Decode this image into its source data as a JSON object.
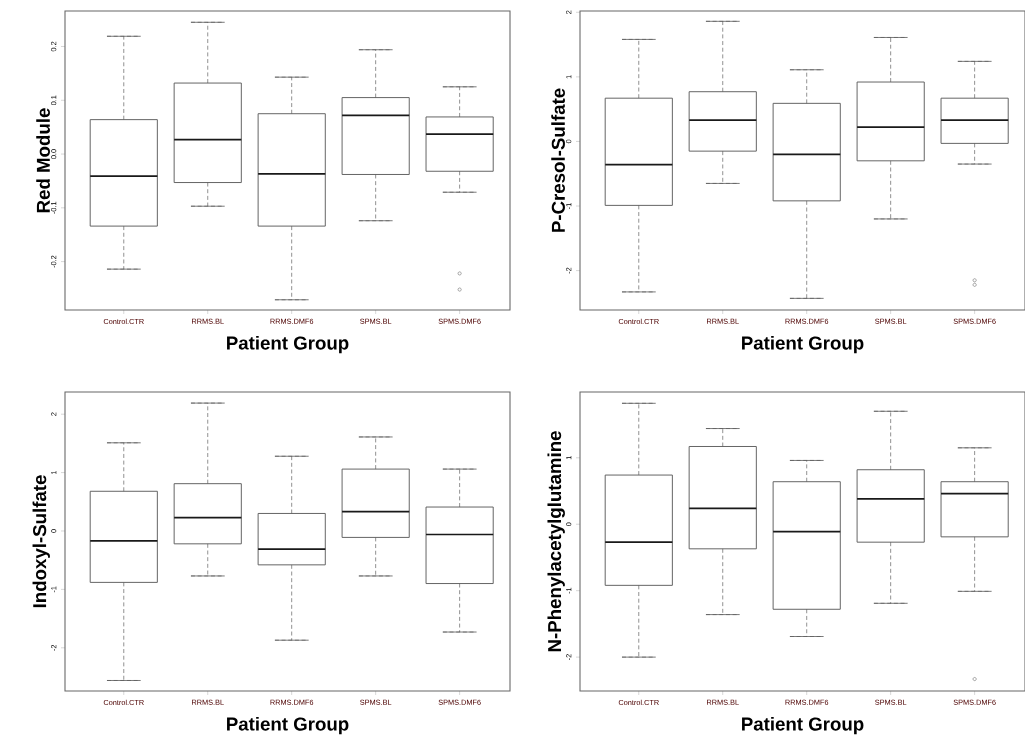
{
  "chart_data": [
    {
      "type": "box",
      "categories": [
        "Control.CTR",
        "RRMS.BL",
        "RRMS.DMF6",
        "SPMS.BL",
        "SPMS.DMF6"
      ],
      "xlabel": "Patient Group",
      "ylabel": "Red Module",
      "ylim": [
        -0.29,
        0.266
      ],
      "yticks": [
        -0.2,
        -0.1,
        {
          "value": 0,
          "label": "0.0"
        },
        0.1,
        0.2
      ],
      "boxes": [
        {
          "low": -0.214,
          "q1": -0.134,
          "median": -0.041,
          "q3": 0.064,
          "high": 0.219
        },
        {
          "low": -0.097,
          "q1": -0.053,
          "median": 0.027,
          "q3": 0.132,
          "high": 0.245
        },
        {
          "low": -0.271,
          "q1": -0.134,
          "median": -0.037,
          "q3": 0.075,
          "high": 0.143
        },
        {
          "low": -0.124,
          "q1": -0.038,
          "median": 0.072,
          "q3": 0.105,
          "high": 0.194
        },
        {
          "low": -0.071,
          "q1": -0.032,
          "median": 0.037,
          "q3": 0.069,
          "high": 0.125,
          "outliers": [
            -0.222,
            -0.252
          ]
        }
      ]
    },
    {
      "type": "box",
      "categories": [
        "Control.CTR",
        "RRMS.BL",
        "RRMS.DMF6",
        "SPMS.BL",
        "SPMS.DMF6"
      ],
      "xlabel": "Patient Group",
      "ylabel": "P-Cresol-Sulfate",
      "ylim": [
        -2.61,
        2.02
      ],
      "yticks": [
        -2,
        -1,
        0,
        1,
        2
      ],
      "boxes": [
        {
          "low": -2.33,
          "q1": -0.99,
          "median": -0.36,
          "q3": 0.67,
          "high": 1.58
        },
        {
          "low": -0.65,
          "q1": -0.15,
          "median": 0.33,
          "q3": 0.77,
          "high": 1.86
        },
        {
          "low": -2.43,
          "q1": -0.92,
          "median": -0.2,
          "q3": 0.59,
          "high": 1.11
        },
        {
          "low": -1.2,
          "q1": -0.3,
          "median": 0.22,
          "q3": 0.92,
          "high": 1.61
        },
        {
          "low": -0.35,
          "q1": -0.03,
          "median": 0.33,
          "q3": 0.67,
          "high": 1.24,
          "outliers": [
            -2.15,
            -2.22
          ]
        }
      ]
    },
    {
      "type": "box",
      "categories": [
        "Control.CTR",
        "RRMS.BL",
        "RRMS.DMF6",
        "SPMS.BL",
        "SPMS.DMF6"
      ],
      "xlabel": "Patient Group",
      "ylabel": "Indoxyl-Sulfate",
      "ylim": [
        -2.74,
        2.38
      ],
      "yticks": [
        -2,
        -1,
        0,
        1,
        2
      ],
      "boxes": [
        {
          "low": -2.56,
          "q1": -0.88,
          "median": -0.17,
          "q3": 0.68,
          "high": 1.51
        },
        {
          "low": -0.77,
          "q1": -0.22,
          "median": 0.23,
          "q3": 0.81,
          "high": 2.19
        },
        {
          "low": -1.87,
          "q1": -0.58,
          "median": -0.31,
          "q3": 0.3,
          "high": 1.28
        },
        {
          "low": -0.77,
          "q1": -0.11,
          "median": 0.33,
          "q3": 1.06,
          "high": 1.61
        },
        {
          "low": -1.73,
          "q1": -0.9,
          "median": -0.06,
          "q3": 0.41,
          "high": 1.06
        }
      ]
    },
    {
      "type": "box",
      "categories": [
        "Control.CTR",
        "RRMS.BL",
        "RRMS.DMF6",
        "SPMS.BL",
        "SPMS.DMF6"
      ],
      "xlabel": "Patient Group",
      "ylabel": "N-Phenylacetylglutamine",
      "ylim": [
        -2.51,
        1.99
      ],
      "yticks": [
        -2,
        -1,
        0,
        1
      ],
      "boxes": [
        {
          "low": -2.0,
          "q1": -0.92,
          "median": -0.27,
          "q3": 0.74,
          "high": 1.82
        },
        {
          "low": -1.36,
          "q1": -0.37,
          "median": 0.24,
          "q3": 1.17,
          "high": 1.44
        },
        {
          "low": -1.69,
          "q1": -1.28,
          "median": -0.11,
          "q3": 0.64,
          "high": 0.96
        },
        {
          "low": -1.19,
          "q1": -0.27,
          "median": 0.38,
          "q3": 0.82,
          "high": 1.7
        },
        {
          "low": -1.01,
          "q1": -0.19,
          "median": 0.46,
          "q3": 0.64,
          "high": 1.15,
          "outliers": [
            -2.33
          ]
        }
      ]
    }
  ]
}
